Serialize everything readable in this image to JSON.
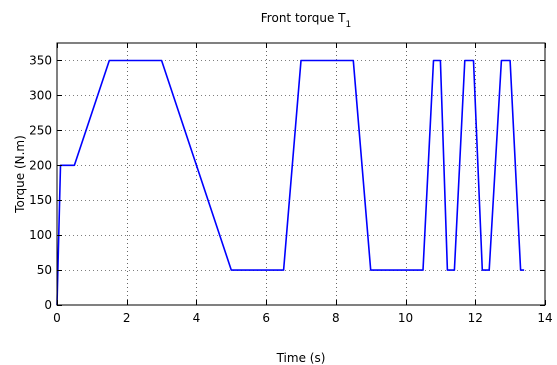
{
  "chart_data": {
    "type": "line",
    "title": "Front torque T",
    "title_subscript": "1",
    "xlabel": "Time (s)",
    "ylabel": "Torque (N.m)",
    "xlim": [
      0,
      14
    ],
    "ylim": [
      0,
      375
    ],
    "xticks": [
      0,
      2,
      4,
      6,
      8,
      10,
      12,
      14
    ],
    "yticks": [
      0,
      50,
      100,
      150,
      200,
      250,
      300,
      350
    ],
    "grid": true,
    "grid_style": "dotted",
    "series": [
      {
        "color": "#0000ff",
        "x": [
          0,
          0.1,
          0.5,
          1.5,
          3.0,
          5.0,
          6.5,
          7.0,
          8.5,
          9.0,
          10.5,
          10.8,
          11.0,
          11.2,
          11.4,
          11.7,
          11.95,
          12.2,
          12.4,
          12.75,
          13.0,
          13.3,
          13.4
        ],
        "y": [
          0,
          200,
          200,
          350,
          350,
          50,
          50,
          350,
          350,
          50,
          50,
          350,
          350,
          50,
          50,
          350,
          350,
          50,
          50,
          350,
          350,
          50,
          50
        ]
      }
    ]
  }
}
